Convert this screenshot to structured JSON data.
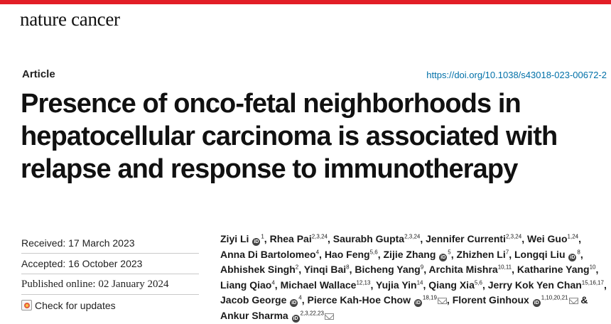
{
  "header": {
    "journal": "nature cancer",
    "accent_color": "#e21e26"
  },
  "article": {
    "type": "Article",
    "doi": "https://doi.org/10.1038/s43018-023-00672-2",
    "title_lines": [
      "Presence of onco-fetal neighborhoods in",
      "hepatocellular carcinoma is associated with",
      "relapse and response to immunotherapy"
    ]
  },
  "meta": {
    "received": "Received: 17 March 2023",
    "accepted": "Accepted: 16 October 2023",
    "published": "Published online: 02 January 2024",
    "check_updates": "Check for updates"
  },
  "authors": [
    {
      "name": "Ziyi Li",
      "sup": "1",
      "orcid": true
    },
    {
      "name": "Rhea Pai",
      "sup": "2,3,24"
    },
    {
      "name": "Saurabh Gupta",
      "sup": "2,3,24"
    },
    {
      "name": "Jennifer Currenti",
      "sup": "2,3,24"
    },
    {
      "name": "Wei Guo",
      "sup": "1,24"
    },
    {
      "name": "Anna Di Bartolomeo",
      "sup": "4"
    },
    {
      "name": "Hao Feng",
      "sup": "5,6"
    },
    {
      "name": "Zijie Zhang",
      "sup": "5",
      "orcid": true
    },
    {
      "name": "Zhizhen Li",
      "sup": "7"
    },
    {
      "name": "Longqi Liu",
      "sup": "8",
      "orcid": true
    },
    {
      "name": "Abhishek Singh",
      "sup": "2"
    },
    {
      "name": "Yinqi Bai",
      "sup": "8"
    },
    {
      "name": "Bicheng Yang",
      "sup": "9"
    },
    {
      "name": "Archita Mishra",
      "sup": "10,11"
    },
    {
      "name": "Katharine Yang",
      "sup": "10"
    },
    {
      "name": "Liang Qiao",
      "sup": "4"
    },
    {
      "name": "Michael Wallace",
      "sup": "12,13"
    },
    {
      "name": "Yujia Yin",
      "sup": "14"
    },
    {
      "name": "Qiang Xia",
      "sup": "5,6"
    },
    {
      "name": "Jerry Kok Yen Chan",
      "sup": "15,16,17"
    },
    {
      "name": "Jacob George",
      "sup": "4",
      "orcid": true
    },
    {
      "name": "Pierce Kah-Hoe Chow",
      "sup": "18,19",
      "orcid": true,
      "email": true
    },
    {
      "name": "Florent Ginhoux",
      "sup": "1,10,20,21",
      "orcid": true,
      "email": true
    },
    {
      "name": "Ankur Sharma",
      "sup": "2,3,22,23",
      "orcid": true,
      "email": true
    }
  ],
  "icons": {
    "orcid": "orcid-icon",
    "email": "email-icon",
    "check_updates": "check-for-updates-icon"
  }
}
